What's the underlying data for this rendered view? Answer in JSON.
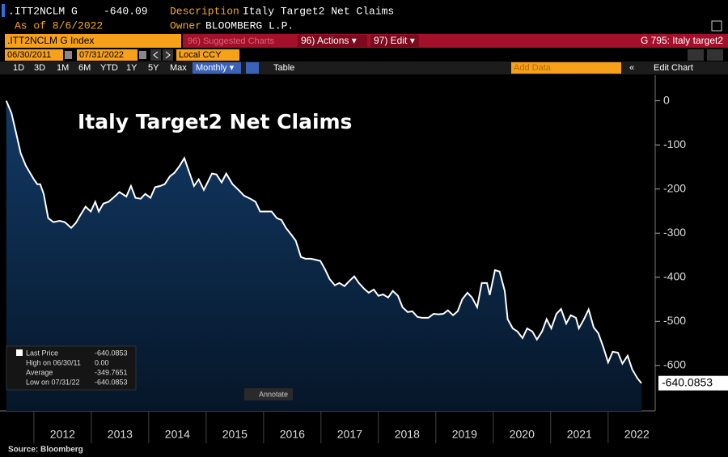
{
  "header": {
    "ticker": ".ITT2NCLM G",
    "price": "-640.09",
    "description_label": "Description",
    "description": "Italy Target2 Net Claims",
    "as_of": "As of 8/6/2022",
    "owner_label": "Owner",
    "owner": "BLOOMBERG L.P."
  },
  "toolbar": {
    "security": ".ITT2NCLM G Index",
    "suggested": "96) Suggested Charts",
    "actions": "96) Actions ▾",
    "edit": "97) Edit ▾",
    "chart_id": "G 795: Italy target2",
    "start_date": "06/30/2011",
    "end_date": "07/31/2022",
    "currency": "Local CCY",
    "ranges": [
      "1D",
      "3D",
      "1M",
      "6M",
      "YTD",
      "1Y",
      "5Y",
      "Max"
    ],
    "frequency": "Monthly ▾",
    "table": "Table",
    "add_data": "Add Data",
    "edit_chart": "Edit Chart",
    "annotate": "Annotate"
  },
  "legend": [
    {
      "label": "Last Price",
      "value": "-640.0853"
    },
    {
      "label": "High on 06/30/11",
      "value": "0.00"
    },
    {
      "label": "Average",
      "value": "-349.7651"
    },
    {
      "label": "Low on 07/31/22",
      "value": "-640.0853"
    }
  ],
  "source": "Source: Bloomberg",
  "chart_data": {
    "type": "area",
    "title": "Italy Target2 Net Claims",
    "color": "#ffffff",
    "fill": "#0b2b4f",
    "x": [
      2011.52,
      2011.61,
      2011.69,
      2011.77,
      2011.86,
      2012.0,
      2012.06,
      2012.11,
      2012.17,
      2012.25,
      2012.34,
      2012.45,
      2012.54,
      2012.65,
      2012.73,
      2012.82,
      2012.9,
      2012.99,
      2013.07,
      2013.13,
      2013.21,
      2013.3,
      2013.38,
      2013.49,
      2013.61,
      2013.69,
      2013.77,
      2013.86,
      2013.94,
      2014.03,
      2014.11,
      2014.2,
      2014.28,
      2014.37,
      2014.45,
      2014.54,
      2014.62,
      2014.7,
      2014.79,
      2014.87,
      2014.96,
      2015.01,
      2015.1,
      2015.18,
      2015.27,
      2015.35,
      2015.46,
      2015.58,
      2015.66,
      2015.77,
      2015.86,
      2015.94,
      2016.06,
      2016.14,
      2016.23,
      2016.31,
      2016.39,
      2016.48,
      2016.56,
      2016.65,
      2016.73,
      2016.82,
      2016.9,
      2016.99,
      2017.07,
      2017.15,
      2017.24,
      2017.32,
      2017.41,
      2017.49,
      2017.58,
      2017.66,
      2017.75,
      2017.83,
      2017.92,
      2018.0,
      2018.08,
      2018.17,
      2018.25,
      2018.34,
      2018.42,
      2018.51,
      2018.59,
      2018.68,
      2018.76,
      2018.87,
      2018.96,
      2019.04,
      2019.13,
      2019.21,
      2019.3,
      2019.38,
      2019.46,
      2019.55,
      2019.63,
      2019.72,
      2019.8,
      2019.89,
      2019.94,
      2020.03,
      2020.11,
      2020.2,
      2020.25,
      2020.34,
      2020.42,
      2020.51,
      2020.59,
      2020.68,
      2020.76,
      2020.85,
      2020.93,
      2021.01,
      2021.1,
      2021.18,
      2021.27,
      2021.35,
      2021.44,
      2021.49,
      2021.58,
      2021.66,
      2021.75,
      2021.83,
      2021.92,
      2022.0,
      2022.08,
      2022.17,
      2022.25,
      2022.34,
      2022.42,
      2022.51,
      2022.58
    ],
    "values": [
      0,
      -28,
      -73,
      -119,
      -147,
      -178,
      -189,
      -189,
      -211,
      -266,
      -275,
      -272,
      -275,
      -288,
      -277,
      -257,
      -240,
      -251,
      -229,
      -251,
      -233,
      -229,
      -220,
      -207,
      -217,
      -193,
      -220,
      -222,
      -211,
      -220,
      -196,
      -193,
      -189,
      -171,
      -163,
      -147,
      -130,
      -160,
      -193,
      -178,
      -202,
      -189,
      -165,
      -167,
      -185,
      -165,
      -189,
      -204,
      -215,
      -222,
      -229,
      -251,
      -251,
      -251,
      -266,
      -270,
      -288,
      -303,
      -317,
      -354,
      -358,
      -358,
      -360,
      -363,
      -382,
      -404,
      -418,
      -413,
      -420,
      -409,
      -398,
      -413,
      -426,
      -435,
      -428,
      -442,
      -439,
      -446,
      -431,
      -442,
      -468,
      -479,
      -477,
      -490,
      -492,
      -492,
      -483,
      -484,
      -483,
      -475,
      -486,
      -477,
      -450,
      -435,
      -446,
      -468,
      -413,
      -413,
      -440,
      -384,
      -387,
      -431,
      -495,
      -516,
      -523,
      -538,
      -516,
      -523,
      -541,
      -523,
      -495,
      -516,
      -483,
      -472,
      -505,
      -486,
      -492,
      -516,
      -495,
      -473,
      -514,
      -527,
      -560,
      -593,
      -569,
      -571,
      -596,
      -578,
      -609,
      -629,
      -640.0853
    ],
    "xlim": [
      2011.41,
      2022.82
    ],
    "xticks": [
      2012,
      2013,
      2014,
      2015,
      2016,
      2017,
      2018,
      2019,
      2020,
      2021,
      2022
    ],
    "ylim": [
      -703,
      58
    ],
    "yticks": [
      0,
      -100,
      -200,
      -300,
      -400,
      -500,
      -600
    ],
    "grid": false
  }
}
